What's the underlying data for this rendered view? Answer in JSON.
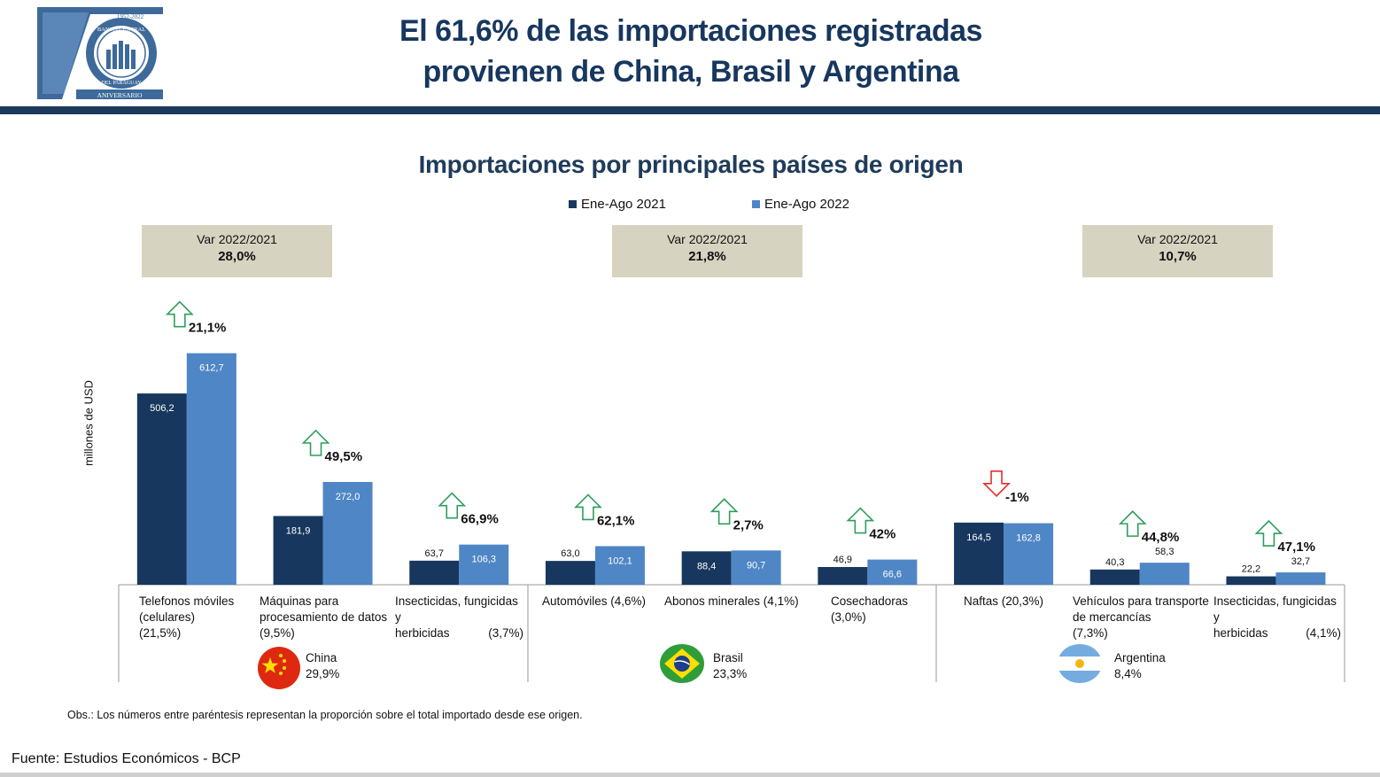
{
  "header": {
    "title_line1": "El 61,6% de las importaciones registradas",
    "title_line2": "provienen de China, Brasil y Argentina",
    "logo": {
      "years": "1952-2022",
      "seal_top": "BANCO CENTRAL",
      "seal_bottom": "DEL PARAGUAY",
      "caption": "ANIVERSARIO"
    }
  },
  "chart_data": {
    "type": "bar",
    "title": "Importaciones por principales países de origen",
    "ylabel": "millones de USD",
    "series": [
      {
        "name": "Ene-Ago 2021",
        "color": "#17375e",
        "values": [
          506.2,
          181.9,
          63.7,
          63.0,
          88.4,
          46.9,
          164.5,
          40.3,
          22.2
        ]
      },
      {
        "name": "Ene-Ago 2022",
        "color": "#4f86c6",
        "values": [
          612.7,
          272.0,
          106.3,
          102.1,
          90.7,
          66.6,
          162.8,
          58.3,
          32.7
        ]
      }
    ],
    "value_labels_2021": [
      "506,2",
      "181,9",
      "63,7",
      "63,0",
      "88,4",
      "46,9",
      "164,5",
      "40,3",
      "22,2"
    ],
    "value_labels_2022": [
      "612,7",
      "272,0",
      "106,3",
      "102,1",
      "90,7",
      "66,6",
      "162,8",
      "58,3",
      "32,7"
    ],
    "categories": [
      {
        "line1": "Telefonos móviles",
        "line2": "(celulares)",
        "line3": "(21,5%)"
      },
      {
        "line1": "Máquinas para",
        "line2": "procesamiento de datos",
        "line3": "(9,5%)"
      },
      {
        "line1": "Insecticidas, fungicidas y",
        "line2": "herbicidas",
        "line3": "(3,7%)"
      },
      {
        "line1": "Automóviles (4,6%)",
        "line2": "",
        "line3": ""
      },
      {
        "line1": "Abonos minerales (4,1%)",
        "line2": "",
        "line3": ""
      },
      {
        "line1": "Cosechadoras",
        "line2": "(3,0%)",
        "line3": ""
      },
      {
        "line1": "Naftas (20,3%)",
        "line2": "",
        "line3": ""
      },
      {
        "line1": "Vehículos para transporte",
        "line2": "de mercancías",
        "line3": "(7,3%)"
      },
      {
        "line1": "Insecticidas, fungicidas y",
        "line2": "herbicidas",
        "line3": "(4,1%)"
      }
    ],
    "variations": [
      {
        "label": "21,1%",
        "direction": "up"
      },
      {
        "label": "49,5%",
        "direction": "up"
      },
      {
        "label": "66,9%",
        "direction": "up"
      },
      {
        "label": "62,1%",
        "direction": "up"
      },
      {
        "label": "2,7%",
        "direction": "up"
      },
      {
        "label": "42%",
        "direction": "up"
      },
      {
        "label": "-1%",
        "direction": "down"
      },
      {
        "label": "44,8%",
        "direction": "up"
      },
      {
        "label": "47,1%",
        "direction": "up"
      }
    ],
    "groups": [
      {
        "country": "China",
        "share": "29,9%",
        "var_label": "Var 2022/2021",
        "var_value": "28,0%"
      },
      {
        "country": "Brasil",
        "share": "23,3%",
        "var_label": "Var 2022/2021",
        "var_value": "21,8%"
      },
      {
        "country": "Argentina",
        "share": "8,4%",
        "var_label": "Var 2022/2021",
        "var_value": "10,7%"
      }
    ],
    "up_color": "#2e9e5b",
    "down_color": "#e0302f"
  },
  "note": "Obs.: Los números entre paréntesis representan la proporción sobre el total importado desde ese origen.",
  "source": "Fuente: Estudios Económicos - BCP"
}
